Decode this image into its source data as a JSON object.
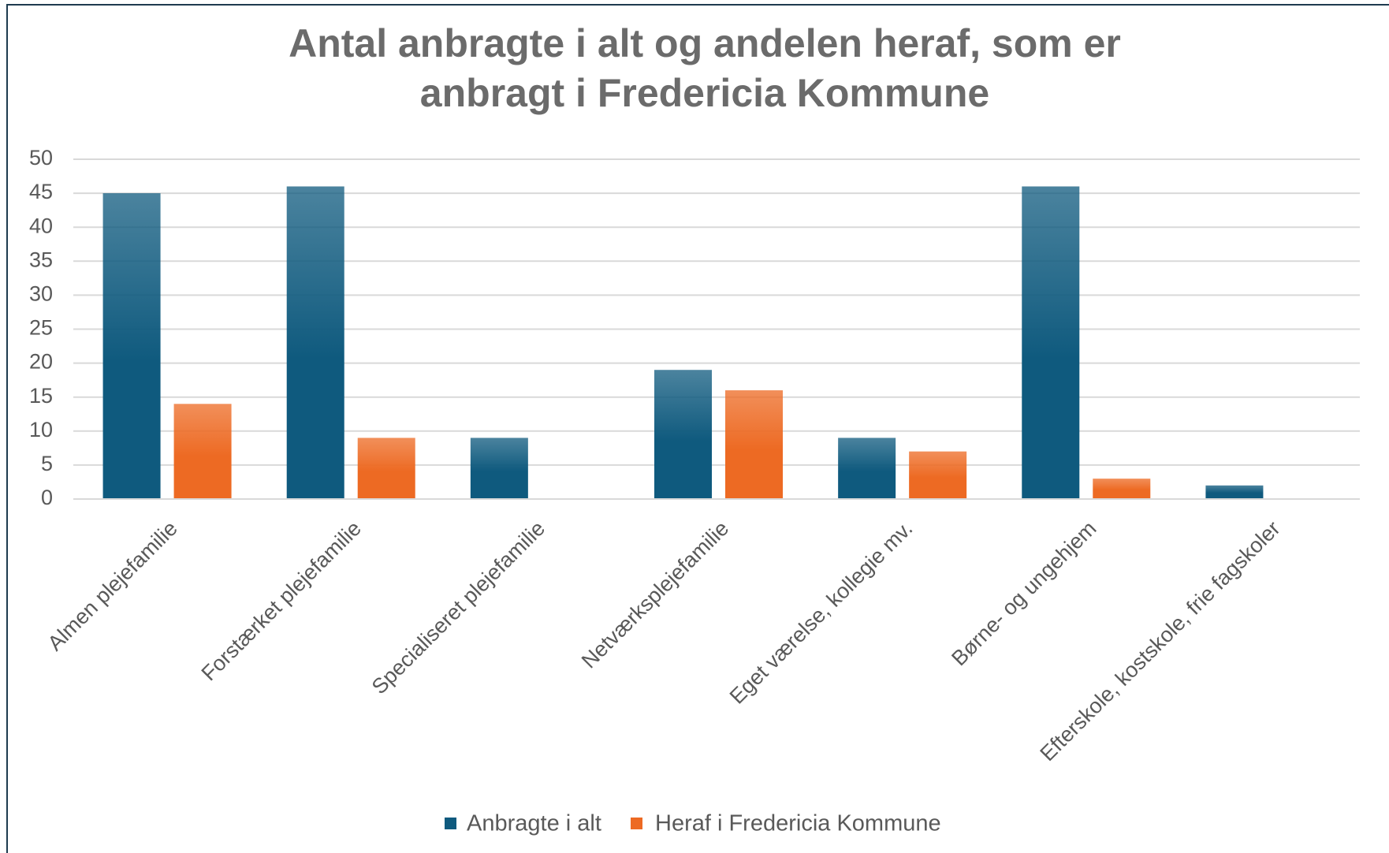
{
  "chart_data": {
    "type": "bar",
    "title": [
      "Antal anbragte i alt  og andelen heraf, som er",
      "anbragt i Fredericia Kommune"
    ],
    "categories": [
      "Almen plejefamilie",
      "Forstærket plejefamilie",
      "Specialiseret plejefamilie",
      "Netværksplejefamilie",
      "Eget værelse, kollegie mv.",
      "Børne- og ungehjem",
      "Efterskole, kostskole, frie fagskoler"
    ],
    "series": [
      {
        "name": "Anbragte i alt",
        "color": "#0f5a7e",
        "values": [
          45,
          46,
          9,
          19,
          9,
          46,
          2
        ]
      },
      {
        "name": "Heraf i Fredericia Kommune",
        "color": "#ed6a23",
        "values": [
          14,
          9,
          null,
          16,
          7,
          3,
          null
        ]
      }
    ],
    "ylim": [
      0,
      50
    ],
    "yticks": [
      0,
      5,
      10,
      15,
      20,
      25,
      30,
      35,
      40,
      45,
      50
    ],
    "grid": true,
    "legend": "bottom"
  }
}
